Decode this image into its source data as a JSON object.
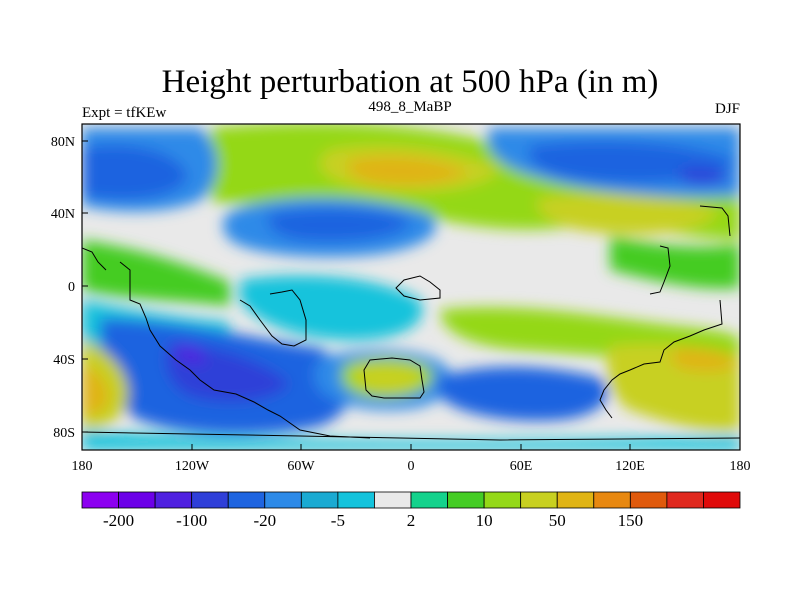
{
  "title": "Height perturbation at 500 hPa (in m)",
  "left_subtitle": "Expt = tfKEw",
  "center_subtitle": "498_8_MaBP",
  "right_subtitle": "DJF",
  "chart_data": {
    "type": "heatmap",
    "projection": "cylindrical equidistant",
    "variable": "Height perturbation at 500 hPa",
    "units": "m",
    "xlim": [
      -180,
      180
    ],
    "ylim": [
      -90,
      90
    ],
    "x_ticks": [
      "180",
      "120W",
      "60W",
      "0",
      "60E",
      "120E",
      "180"
    ],
    "y_ticks": [
      "80N",
      "40N",
      "0",
      "40S",
      "80S"
    ],
    "colorbar": {
      "levels": [
        -200,
        -100,
        -50,
        -20,
        -10,
        -5,
        -2,
        2,
        5,
        10,
        20,
        50,
        100,
        150
      ],
      "labels": [
        "-200",
        "-100",
        "-20",
        "-5",
        "2",
        "10",
        "50",
        "150"
      ],
      "colors": [
        "#8c00f0",
        "#6c00e8",
        "#4f20e0",
        "#2f3fd8",
        "#1e64e0",
        "#2d8ae8",
        "#1aaad2",
        "#14c3dc",
        "#e9e9e9",
        "#14d28c",
        "#44cc24",
        "#94d818",
        "#c8d020",
        "#e0b414",
        "#e88810",
        "#e05a0c",
        "#e0281e",
        "#e00a0a"
      ]
    }
  }
}
